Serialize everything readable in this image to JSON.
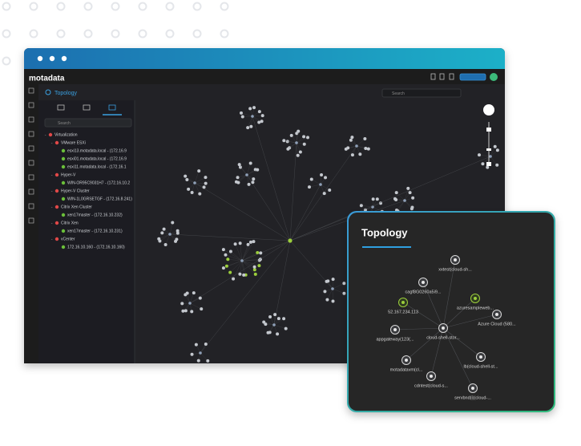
{
  "app": {
    "logo": "motadata",
    "page_title": "Topology",
    "search_placeholder": "Search"
  },
  "sidebar": {
    "search_placeholder": "Search",
    "tree": [
      {
        "label": "Virtualization",
        "children": [
          {
            "label": "VMware ESXi",
            "children": [
              {
                "label": "esxi13.motadata.local - (172.16.9"
              },
              {
                "label": "esxi01.motadata.local - (172.16.9"
              },
              {
                "label": "esxi11.motadata.local - (172.16.1"
              }
            ]
          },
          {
            "label": "Hyper-V",
            "children": [
              {
                "label": "WIN-OR95C9031H7 - (172.16.10.2"
              }
            ]
          },
          {
            "label": "Hyper-V Cluster",
            "children": [
              {
                "label": "WIN-1L0GRSETGF - (172.16.8.241)"
              }
            ]
          },
          {
            "label": "Citrix Xen Cluster",
            "children": [
              {
                "label": "xen17master - (172.16.10.232)"
              }
            ]
          },
          {
            "label": "Citrix Xen",
            "children": [
              {
                "label": "xen17master - (172.16.10.231)"
              }
            ]
          },
          {
            "label": "vCenter",
            "children": [
              {
                "label": "172.16.10.160 - (172.16.10.160)"
              }
            ]
          }
        ]
      }
    ]
  },
  "popup": {
    "title": "Topology",
    "nodes": [
      {
        "label": "xxtest(cloud-sh..."
      },
      {
        "label": "cagf8G0260a5i9..."
      },
      {
        "label": "52.167.234.113"
      },
      {
        "label": "azuresampleweb..."
      },
      {
        "label": "Azure Cloud (580..."
      },
      {
        "label": "appgateway(123(..."
      },
      {
        "label": "cloud-shell-stor..."
      },
      {
        "label": "motadatavm(cl..."
      },
      {
        "label": "lb(cloud-shell-st..."
      },
      {
        "label": "cdntest(cloud-s..."
      },
      {
        "label": "servbnd(i)(cloud-..."
      }
    ]
  }
}
